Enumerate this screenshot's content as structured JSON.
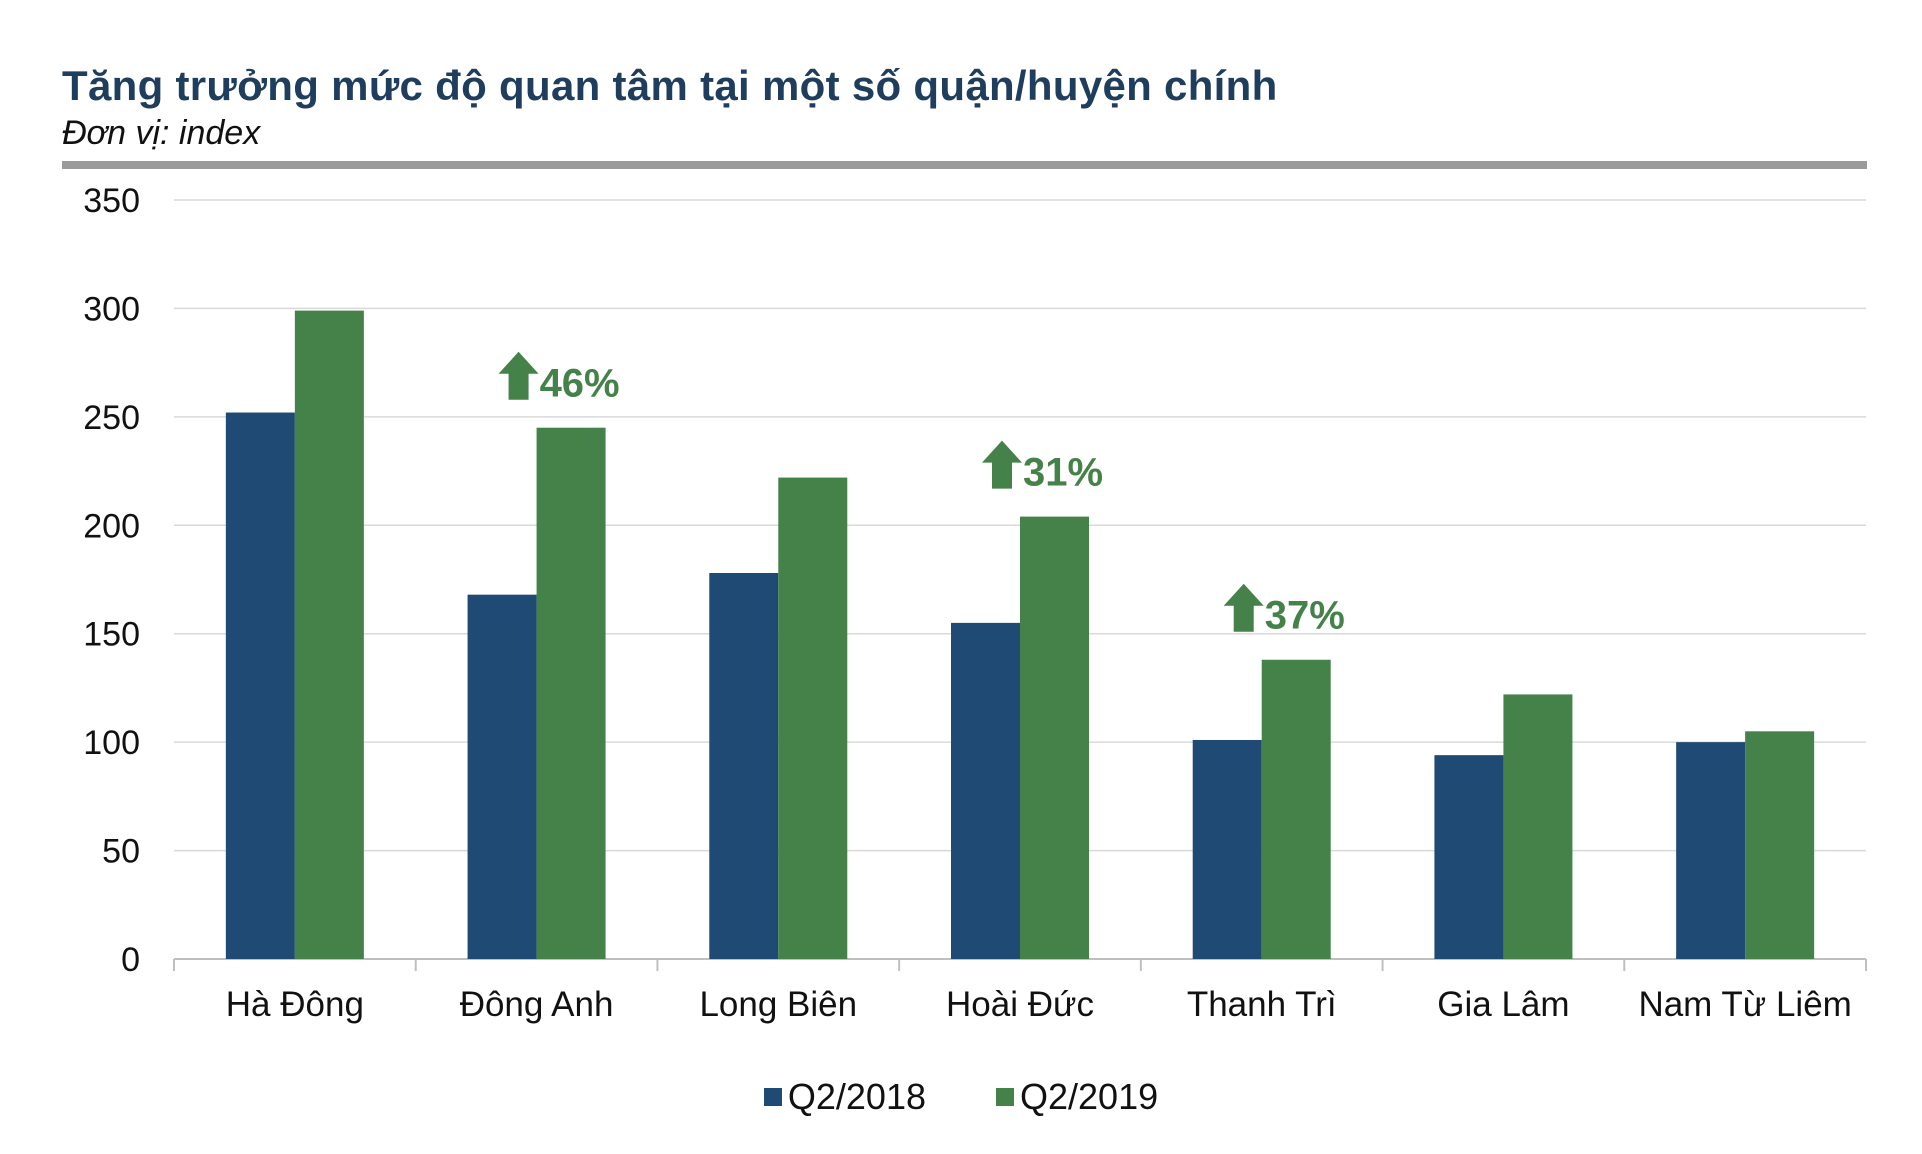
{
  "chart_data": {
    "type": "bar",
    "title": "Tăng trưởng mức độ quan tâm tại một số quận/huyện chính",
    "subtitle": "Đơn vị: index",
    "categories": [
      "Hà Đông",
      "Đông Anh",
      "Long Biên",
      "Hoài Đức",
      "Thanh Trì",
      "Gia Lâm",
      "Nam Từ Liêm"
    ],
    "series": [
      {
        "name": "Q2/2018",
        "color": "#1f4a73",
        "values": [
          252,
          168,
          178,
          155,
          101,
          94,
          100
        ]
      },
      {
        "name": "Q2/2019",
        "color": "#458249",
        "values": [
          299,
          245,
          222,
          204,
          138,
          122,
          105
        ]
      }
    ],
    "ylim": [
      0,
      350
    ],
    "yticks": [
      0,
      50,
      100,
      150,
      200,
      250,
      300,
      350
    ],
    "grid": true,
    "legend_position": "bottom",
    "annotations": [
      {
        "category": "Đông Anh",
        "text": "46%",
        "icon": "up-arrow-icon",
        "color": "#458249"
      },
      {
        "category": "Hoài Đức",
        "text": "31%",
        "icon": "up-arrow-icon",
        "color": "#458249"
      },
      {
        "category": "Thanh Trì",
        "text": "37%",
        "icon": "up-arrow-icon",
        "color": "#458249"
      }
    ]
  }
}
